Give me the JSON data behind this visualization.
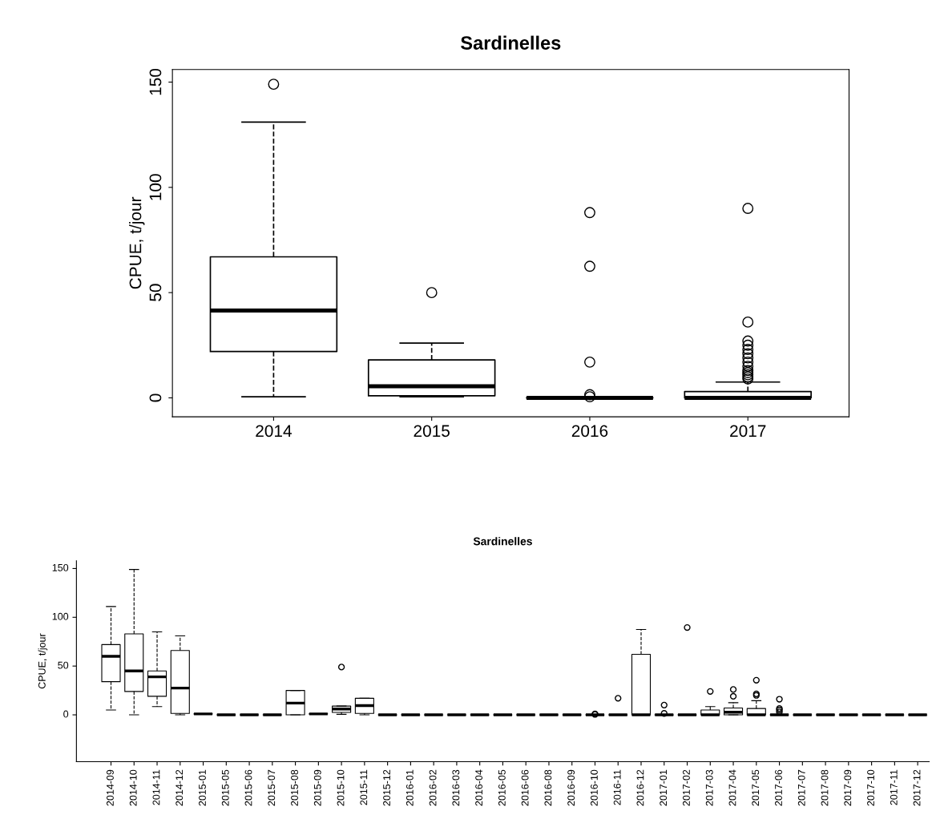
{
  "chart_data": [
    {
      "type": "box",
      "title": "Sardinelles",
      "ylabel": "CPUE, t/jour",
      "categories": [
        "2014",
        "2015",
        "2016",
        "2017"
      ],
      "ylim": [
        -9,
        156
      ],
      "yticks": [
        0,
        50,
        100,
        150
      ],
      "grid": false,
      "boxes": [
        {
          "low": 0.5,
          "q1": 22,
          "median": 41.5,
          "q3": 67,
          "high": 131,
          "outliers": [
            149
          ]
        },
        {
          "low": 0.5,
          "q1": 1,
          "median": 5.5,
          "q3": 18,
          "high": 26,
          "outliers": [
            50
          ]
        },
        {
          "low": 0,
          "q1": 0,
          "median": 0,
          "q3": 0,
          "high": 0,
          "outliers": [
            0.5,
            1.5,
            17,
            62.5,
            88
          ]
        },
        {
          "low": 0,
          "q1": 0,
          "median": 0,
          "q3": 3,
          "high": 7.5,
          "outliers": [
            9,
            10,
            11,
            12,
            13,
            15,
            17,
            19,
            21,
            23,
            25,
            27,
            36,
            90
          ]
        }
      ]
    },
    {
      "type": "box",
      "title": "Sardinelles",
      "ylabel": "CPUE, t/jour",
      "categories": [
        "2014-09",
        "2014-10",
        "2014-11",
        "2014-12",
        "2015-01",
        "2015-05",
        "2015-06",
        "2015-07",
        "2015-08",
        "2015-09",
        "2015-10",
        "2015-11",
        "2015-12",
        "2016-01",
        "2016-02",
        "2016-03",
        "2016-04",
        "2016-05",
        "2016-06",
        "2016-08",
        "2016-09",
        "2016-10",
        "2016-11",
        "2016-12",
        "2017-01",
        "2017-02",
        "2017-03",
        "2017-04",
        "2017-05",
        "2017-06",
        "2017-07",
        "2017-08",
        "2017-09",
        "2017-10",
        "2017-11",
        "2017-12"
      ],
      "ylim": [
        -48,
        158
      ],
      "yticks": [
        0,
        50,
        100,
        150
      ],
      "grid": false,
      "boxes": [
        {
          "low": 5,
          "q1": 34,
          "median": 60,
          "q3": 72,
          "high": 111
        },
        {
          "low": 0,
          "q1": 24,
          "median": 45,
          "q3": 83,
          "high": 149
        },
        {
          "low": 8.5,
          "q1": 19,
          "median": 39,
          "q3": 45,
          "high": 85
        },
        {
          "low": 0,
          "q1": 1.5,
          "median": 27.5,
          "q3": 66,
          "high": 81
        },
        {
          "low": 1,
          "q1": 1,
          "median": 1,
          "q3": 1,
          "high": 1
        },
        {
          "low": 0,
          "q1": 0,
          "median": 0,
          "q3": 0,
          "high": 0
        },
        {
          "low": 0,
          "q1": 0,
          "median": 0,
          "q3": 0,
          "high": 0
        },
        {
          "low": 0,
          "q1": 0,
          "median": 0,
          "q3": 0,
          "high": 0
        },
        {
          "low": 0,
          "q1": 0,
          "median": 12,
          "q3": 25,
          "high": 25
        },
        {
          "low": 1,
          "q1": 1,
          "median": 1,
          "q3": 1,
          "high": 1
        },
        {
          "low": 0.5,
          "q1": 2.5,
          "median": 6,
          "q3": 9,
          "high": 9,
          "outliers": [
            49
          ]
        },
        {
          "low": 0,
          "q1": 1.5,
          "median": 9.5,
          "q3": 17,
          "high": 17
        },
        {
          "low": 0,
          "q1": 0,
          "median": 0,
          "q3": 0,
          "high": 0
        },
        {
          "low": 0,
          "q1": 0,
          "median": 0,
          "q3": 0,
          "high": 0
        },
        {
          "low": 0,
          "q1": 0,
          "median": 0,
          "q3": 0,
          "high": 0
        },
        {
          "low": 0,
          "q1": 0,
          "median": 0,
          "q3": 0,
          "high": 0
        },
        {
          "low": 0,
          "q1": 0,
          "median": 0,
          "q3": 0,
          "high": 0
        },
        {
          "low": 0,
          "q1": 0,
          "median": 0,
          "q3": 0,
          "high": 0
        },
        {
          "low": 0,
          "q1": 0,
          "median": 0,
          "q3": 0,
          "high": 0
        },
        {
          "low": 0,
          "q1": 0,
          "median": 0,
          "q3": 0,
          "high": 0
        },
        {
          "low": 0,
          "q1": 0,
          "median": 0,
          "q3": 0,
          "high": 0
        },
        {
          "low": 0,
          "q1": 0,
          "median": 0,
          "q3": 0,
          "high": 0,
          "outliers": [
            0.5,
            1
          ]
        },
        {
          "low": 0,
          "q1": 0,
          "median": 0,
          "q3": 0,
          "high": 0,
          "outliers": [
            17
          ]
        },
        {
          "low": 0,
          "q1": 0,
          "median": 0,
          "q3": 62,
          "high": 87.5
        },
        {
          "low": 0,
          "q1": 0,
          "median": 0,
          "q3": 0,
          "high": 0,
          "outliers": [
            1.5,
            10
          ]
        },
        {
          "low": 0,
          "q1": 0,
          "median": 0,
          "q3": 0,
          "high": 0,
          "outliers": [
            89.5
          ]
        },
        {
          "low": 0,
          "q1": 0,
          "median": 0,
          "q3": 5,
          "high": 8.5,
          "outliers": [
            24
          ]
        },
        {
          "low": 0,
          "q1": 0,
          "median": 2.7,
          "q3": 7,
          "high": 12.5,
          "outliers": [
            19,
            26
          ]
        },
        {
          "low": 0,
          "q1": 0,
          "median": 0,
          "q3": 6.5,
          "high": 14.5,
          "outliers": [
            20,
            21.5,
            35.5
          ]
        },
        {
          "low": 0,
          "q1": 0,
          "median": 0,
          "q3": 0,
          "high": 0,
          "outliers": [
            3,
            5,
            6.5,
            16
          ]
        },
        {
          "low": 0,
          "q1": 0,
          "median": 0,
          "q3": 0,
          "high": 0
        },
        {
          "low": 0,
          "q1": 0,
          "median": 0,
          "q3": 0,
          "high": 0
        },
        {
          "low": 0,
          "q1": 0,
          "median": 0,
          "q3": 0,
          "high": 0
        },
        {
          "low": 0,
          "q1": 0,
          "median": 0,
          "q3": 0,
          "high": 0
        },
        {
          "low": 0,
          "q1": 0,
          "median": 0,
          "q3": 0,
          "high": 0
        },
        {
          "low": 0,
          "q1": 0,
          "median": 0,
          "q3": 0,
          "high": 0
        }
      ]
    }
  ]
}
